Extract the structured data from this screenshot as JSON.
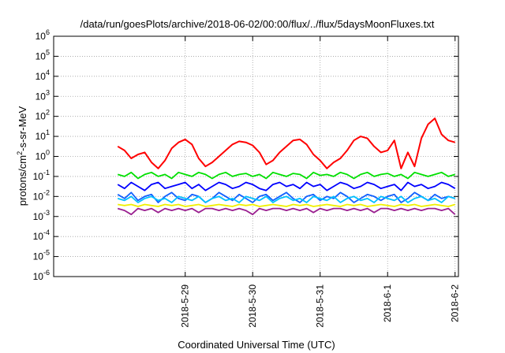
{
  "chart_data": {
    "type": "line",
    "title": "/data/run/goesPlots/archive/2018-06-02/00:00/flux/../flux/5daysMoonFluxes.txt",
    "xlabel": "Coordinated Universal Time (UTC)",
    "ylabel_parts": [
      "protons/cm",
      "2",
      "-s-sr-MeV"
    ],
    "yscale": "log",
    "ylim_exp": [
      -6,
      6
    ],
    "y_ticks": [
      {
        "base": "10",
        "exp": "-6",
        "e": -6
      },
      {
        "base": "10",
        "exp": "-5",
        "e": -5
      },
      {
        "base": "10",
        "exp": "-4",
        "e": -4
      },
      {
        "base": "10",
        "exp": "-3",
        "e": -3
      },
      {
        "base": "10",
        "exp": "-2",
        "e": -2
      },
      {
        "base": "10",
        "exp": "-1",
        "e": -1
      },
      {
        "base": "10",
        "exp": "0",
        "e": 0
      },
      {
        "base": "10",
        "exp": "1",
        "e": 1
      },
      {
        "base": "10",
        "exp": "2",
        "e": 2
      },
      {
        "base": "10",
        "exp": "3",
        "e": 3
      },
      {
        "base": "10",
        "exp": "4",
        "e": 4
      },
      {
        "base": "10",
        "exp": "5",
        "e": 5
      },
      {
        "base": "10",
        "exp": "6",
        "e": 6
      }
    ],
    "x_range_days": [
      -1.95,
      0.05
    ],
    "x_ticks": [
      {
        "label": "2018-5-29",
        "day": -4
      },
      {
        "label": "2018-5-30",
        "day": -3
      },
      {
        "label": "2018-5-31",
        "day": -2
      },
      {
        "label": "2018-6-1",
        "day": -1
      },
      {
        "label": "2018-6-2",
        "day": 0
      }
    ],
    "x_start_day": -5.0,
    "grid": true,
    "series": [
      {
        "color": "#ff0000",
        "x": [
          -5.0,
          -4.9,
          -4.8,
          -4.7,
          -4.6,
          -4.5,
          -4.4,
          -4.3,
          -4.2,
          -4.1,
          -4.0,
          -3.9,
          -3.8,
          -3.7,
          -3.6,
          -3.5,
          -3.4,
          -3.3,
          -3.2,
          -3.1,
          -3.0,
          -2.9,
          -2.8,
          -2.7,
          -2.6,
          -2.5,
          -2.4,
          -2.3,
          -2.2,
          -2.1,
          -2.0,
          -1.9,
          -1.8,
          -1.7,
          -1.6,
          -1.5,
          -1.4,
          -1.3,
          -1.2,
          -1.1,
          -1.0,
          -0.9,
          -0.8,
          -0.7,
          -0.6,
          -0.5,
          -0.4,
          -0.3,
          -0.2,
          -0.1,
          0.0
        ],
        "log10": [
          0.5,
          0.3,
          -0.1,
          0.1,
          0.2,
          -0.3,
          -0.6,
          -0.2,
          0.4,
          0.7,
          0.85,
          0.6,
          -0.1,
          -0.5,
          -0.3,
          0.0,
          0.3,
          0.6,
          0.75,
          0.7,
          0.55,
          0.2,
          -0.4,
          -0.2,
          0.2,
          0.5,
          0.8,
          0.85,
          0.6,
          0.1,
          -0.2,
          -0.6,
          -0.3,
          -0.1,
          0.3,
          0.8,
          1.0,
          0.9,
          0.5,
          0.2,
          0.3,
          0.8,
          -0.6,
          0.2,
          -0.5,
          0.9,
          1.6,
          1.9,
          1.1,
          0.8,
          0.7
        ]
      },
      {
        "color": "#00e000",
        "x": [
          -5.0,
          -4.9,
          -4.8,
          -4.7,
          -4.6,
          -4.5,
          -4.4,
          -4.3,
          -4.2,
          -4.1,
          -4.0,
          -3.9,
          -3.8,
          -3.7,
          -3.6,
          -3.5,
          -3.4,
          -3.3,
          -3.2,
          -3.1,
          -3.0,
          -2.9,
          -2.8,
          -2.7,
          -2.6,
          -2.5,
          -2.4,
          -2.3,
          -2.2,
          -2.1,
          -2.0,
          -1.9,
          -1.8,
          -1.7,
          -1.6,
          -1.5,
          -1.4,
          -1.3,
          -1.2,
          -1.1,
          -1.0,
          -0.9,
          -0.8,
          -0.7,
          -0.6,
          -0.5,
          -0.4,
          -0.3,
          -0.2,
          -0.1,
          0.0
        ],
        "log10": [
          -0.9,
          -1.0,
          -0.8,
          -1.1,
          -0.9,
          -0.8,
          -1.0,
          -0.9,
          -1.1,
          -0.8,
          -0.9,
          -1.0,
          -0.8,
          -0.9,
          -1.1,
          -0.9,
          -0.8,
          -1.0,
          -0.9,
          -0.85,
          -1.0,
          -0.9,
          -1.1,
          -0.8,
          -0.9,
          -1.0,
          -0.85,
          -0.9,
          -1.1,
          -0.8,
          -0.95,
          -0.9,
          -1.0,
          -0.8,
          -0.9,
          -1.1,
          -0.9,
          -0.8,
          -1.0,
          -0.9,
          -0.85,
          -1.0,
          -0.9,
          -1.1,
          -0.8,
          -0.9,
          -1.0,
          -0.9,
          -0.8,
          -1.0,
          -0.9
        ]
      },
      {
        "color": "#0000ff",
        "x": [
          -5.0,
          -4.9,
          -4.8,
          -4.7,
          -4.6,
          -4.5,
          -4.4,
          -4.3,
          -4.2,
          -4.1,
          -4.0,
          -3.9,
          -3.8,
          -3.7,
          -3.6,
          -3.5,
          -3.4,
          -3.3,
          -3.2,
          -3.1,
          -3.0,
          -2.9,
          -2.8,
          -2.7,
          -2.6,
          -2.5,
          -2.4,
          -2.3,
          -2.2,
          -2.1,
          -2.0,
          -1.9,
          -1.8,
          -1.7,
          -1.6,
          -1.5,
          -1.4,
          -1.3,
          -1.2,
          -1.1,
          -1.0,
          -0.9,
          -0.8,
          -0.7,
          -0.6,
          -0.5,
          -0.4,
          -0.3,
          -0.2,
          -0.1,
          0.0
        ],
        "log10": [
          -1.4,
          -1.6,
          -1.3,
          -1.5,
          -1.7,
          -1.4,
          -1.3,
          -1.6,
          -1.5,
          -1.4,
          -1.3,
          -1.6,
          -1.4,
          -1.7,
          -1.5,
          -1.3,
          -1.4,
          -1.6,
          -1.5,
          -1.3,
          -1.4,
          -1.6,
          -1.7,
          -1.4,
          -1.3,
          -1.5,
          -1.4,
          -1.6,
          -1.3,
          -1.5,
          -1.4,
          -1.7,
          -1.5,
          -1.3,
          -1.4,
          -1.6,
          -1.5,
          -1.3,
          -1.4,
          -1.6,
          -1.5,
          -1.4,
          -1.7,
          -1.3,
          -1.5,
          -1.4,
          -1.6,
          -1.5,
          -1.3,
          -1.4,
          -1.6
        ]
      },
      {
        "color": "#1060ff",
        "x": [
          -5.0,
          -4.9,
          -4.8,
          -4.7,
          -4.6,
          -4.5,
          -4.4,
          -4.3,
          -4.2,
          -4.1,
          -4.0,
          -3.9,
          -3.8,
          -3.7,
          -3.6,
          -3.5,
          -3.4,
          -3.3,
          -3.2,
          -3.1,
          -3.0,
          -2.9,
          -2.8,
          -2.7,
          -2.6,
          -2.5,
          -2.4,
          -2.3,
          -2.2,
          -2.1,
          -2.0,
          -1.9,
          -1.8,
          -1.7,
          -1.6,
          -1.5,
          -1.4,
          -1.3,
          -1.2,
          -1.1,
          -1.0,
          -0.9,
          -0.8,
          -0.7,
          -0.6,
          -0.5,
          -0.4,
          -0.3,
          -0.2,
          -0.1,
          0.0
        ],
        "log10": [
          -1.9,
          -2.1,
          -1.8,
          -2.2,
          -2.0,
          -1.9,
          -2.3,
          -2.0,
          -1.8,
          -2.1,
          -2.2,
          -1.9,
          -2.0,
          -2.3,
          -2.1,
          -1.8,
          -2.0,
          -2.2,
          -1.9,
          -2.1,
          -2.3,
          -2.0,
          -1.9,
          -2.2,
          -2.0,
          -1.8,
          -2.1,
          -2.3,
          -2.0,
          -1.9,
          -2.2,
          -2.0,
          -2.1,
          -1.8,
          -2.0,
          -2.3,
          -2.1,
          -1.9,
          -2.0,
          -2.2,
          -2.0,
          -1.9,
          -2.3,
          -2.1,
          -1.8,
          -2.0,
          -2.2,
          -1.9,
          -2.1,
          -2.0,
          -2.1
        ]
      },
      {
        "color": "#00bfff",
        "x": [
          -5.0,
          -4.9,
          -4.8,
          -4.7,
          -4.6,
          -4.5,
          -4.4,
          -4.3,
          -4.2,
          -4.1,
          -4.0,
          -3.9,
          -3.8,
          -3.7,
          -3.6,
          -3.5,
          -3.4,
          -3.3,
          -3.2,
          -3.1,
          -3.0,
          -2.9,
          -2.8,
          -2.7,
          -2.6,
          -2.5,
          -2.4,
          -2.3,
          -2.2,
          -2.1,
          -2.0,
          -1.9,
          -1.8,
          -1.7,
          -1.6,
          -1.5,
          -1.4,
          -1.3,
          -1.2,
          -1.1,
          -1.0,
          -0.9,
          -0.8,
          -0.7,
          -0.6,
          -0.5,
          -0.4,
          -0.3,
          -0.2,
          -0.1,
          0.0
        ],
        "log10": [
          -2.1,
          -2.2,
          -2.0,
          -2.3,
          -2.1,
          -2.0,
          -2.2,
          -2.1,
          -2.3,
          -2.0,
          -2.1,
          -2.2,
          -2.0,
          -2.3,
          -2.1,
          -2.0,
          -2.2,
          -2.1,
          -2.3,
          -2.0,
          -2.1,
          -2.2,
          -2.0,
          -2.3,
          -2.1,
          -2.0,
          -2.2,
          -2.1,
          -2.3,
          -2.0,
          -2.1,
          -2.2,
          -2.0,
          -2.3,
          -2.1,
          -2.0,
          -2.2,
          -2.1,
          -2.3,
          -2.0,
          -2.1,
          -2.2,
          -2.0,
          -2.3,
          -2.1,
          -2.0,
          -2.2,
          -2.1,
          -2.3,
          -2.0,
          -2.1
        ]
      },
      {
        "color": "#f0f000",
        "x": [
          -5.0,
          -4.9,
          -4.8,
          -4.7,
          -4.6,
          -4.5,
          -4.4,
          -4.3,
          -4.2,
          -4.1,
          -4.0,
          -3.9,
          -3.8,
          -3.7,
          -3.6,
          -3.5,
          -3.4,
          -3.3,
          -3.2,
          -3.1,
          -3.0,
          -2.9,
          -2.8,
          -2.7,
          -2.6,
          -2.5,
          -2.4,
          -2.3,
          -2.2,
          -2.1,
          -2.0,
          -1.9,
          -1.8,
          -1.7,
          -1.6,
          -1.5,
          -1.4,
          -1.3,
          -1.2,
          -1.1,
          -1.0,
          -0.9,
          -0.8,
          -0.7,
          -0.6,
          -0.5,
          -0.4,
          -0.3,
          -0.2,
          -0.1,
          0.0
        ],
        "log10": [
          -2.4,
          -2.45,
          -2.4,
          -2.5,
          -2.4,
          -2.45,
          -2.5,
          -2.4,
          -2.45,
          -2.4,
          -2.5,
          -2.45,
          -2.4,
          -2.5,
          -2.45,
          -2.4,
          -2.45,
          -2.5,
          -2.4,
          -2.45,
          -2.4,
          -2.5,
          -2.45,
          -2.4,
          -2.45,
          -2.5,
          -2.4,
          -2.45,
          -2.4,
          -2.5,
          -2.45,
          -2.4,
          -2.45,
          -2.5,
          -2.4,
          -2.45,
          -2.4,
          -2.5,
          -2.45,
          -2.4,
          -2.45,
          -2.5,
          -2.4,
          -2.45,
          -2.4,
          -2.5,
          -2.45,
          -2.4,
          -2.45,
          -2.5,
          -2.4
        ]
      },
      {
        "color": "#9a2090",
        "x": [
          -5.0,
          -4.9,
          -4.8,
          -4.7,
          -4.6,
          -4.5,
          -4.4,
          -4.3,
          -4.2,
          -4.1,
          -4.0,
          -3.9,
          -3.8,
          -3.7,
          -3.6,
          -3.5,
          -3.4,
          -3.3,
          -3.2,
          -3.1,
          -3.0,
          -2.9,
          -2.8,
          -2.7,
          -2.6,
          -2.5,
          -2.4,
          -2.3,
          -2.2,
          -2.1,
          -2.0,
          -1.9,
          -1.8,
          -1.7,
          -1.6,
          -1.5,
          -1.4,
          -1.3,
          -1.2,
          -1.1,
          -1.0,
          -0.9,
          -0.8,
          -0.7,
          -0.6,
          -0.5,
          -0.4,
          -0.3,
          -0.2,
          -0.1,
          0.0
        ],
        "log10": [
          -2.6,
          -2.7,
          -2.9,
          -2.6,
          -2.7,
          -2.6,
          -2.8,
          -2.6,
          -2.7,
          -2.6,
          -2.7,
          -2.6,
          -2.8,
          -2.6,
          -2.6,
          -2.7,
          -2.6,
          -2.7,
          -2.6,
          -2.7,
          -2.9,
          -2.6,
          -2.7,
          -2.6,
          -2.6,
          -2.7,
          -2.6,
          -2.7,
          -2.6,
          -2.8,
          -2.6,
          -2.7,
          -2.6,
          -2.6,
          -2.7,
          -2.6,
          -2.7,
          -2.6,
          -2.8,
          -2.6,
          -2.6,
          -2.7,
          -2.6,
          -2.7,
          -2.6,
          -2.7,
          -2.6,
          -2.6,
          -2.7,
          -2.6,
          -2.9
        ]
      }
    ]
  }
}
